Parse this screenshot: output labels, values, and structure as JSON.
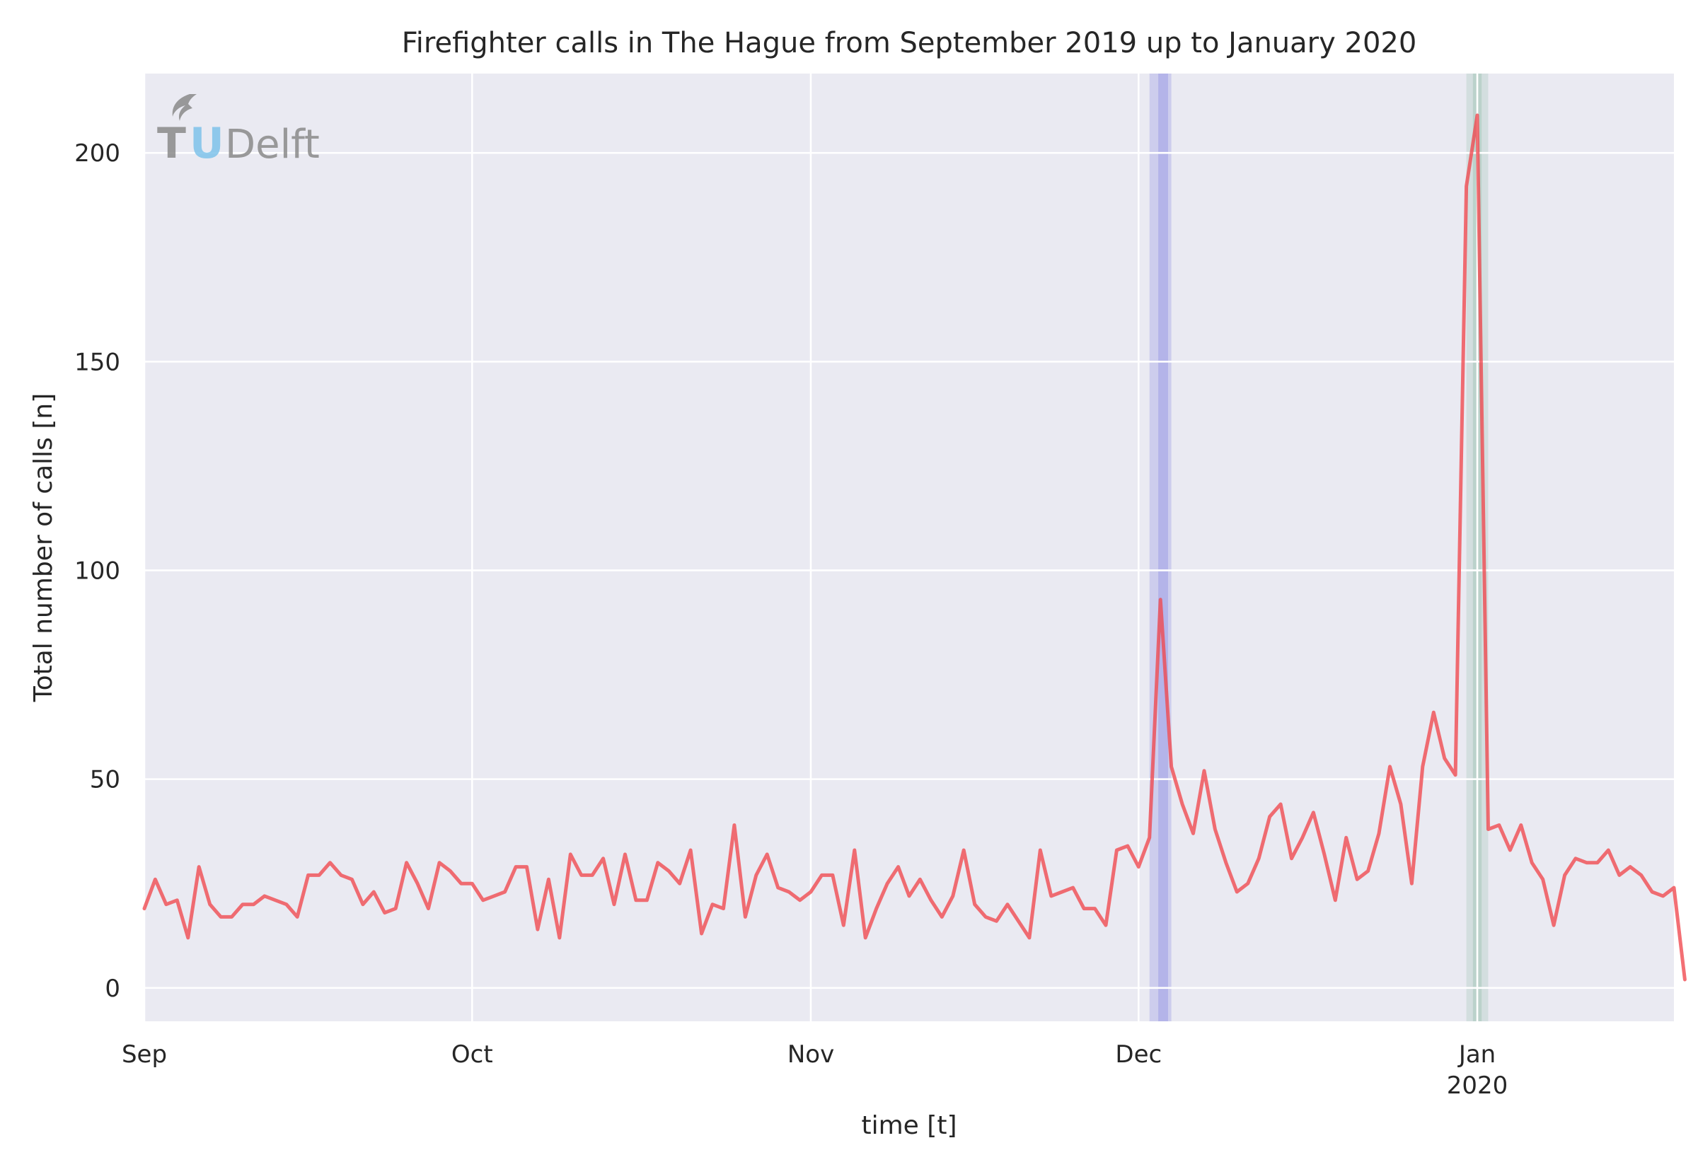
{
  "chart_data": {
    "type": "line",
    "title": "Firefighter calls in The Hague from September 2019 up to January 2020",
    "xlabel": "time [t]",
    "ylabel": "Total number of calls [n]",
    "x_range": [
      "2019-09-01",
      "2020-01-19"
    ],
    "ylim": [
      -8,
      219
    ],
    "grid": true,
    "y_ticks": [
      0,
      50,
      100,
      150,
      200
    ],
    "x_ticks": [
      {
        "date": "2019-09-01",
        "label": "Sep",
        "sublabel": ""
      },
      {
        "date": "2019-10-01",
        "label": "Oct",
        "sublabel": ""
      },
      {
        "date": "2019-11-01",
        "label": "Nov",
        "sublabel": ""
      },
      {
        "date": "2019-12-01",
        "label": "Dec",
        "sublabel": ""
      },
      {
        "date": "2020-01-01",
        "label": "Jan",
        "sublabel": "2020"
      }
    ],
    "highlight_spans": [
      {
        "start": "2019-12-02",
        "end": "2019-12-04",
        "color": "#0000cd",
        "opacity": 0.12
      },
      {
        "start": "2019-12-02.8",
        "end": "2019-12-03.7",
        "color": "#0000cd",
        "opacity": 0.12
      },
      {
        "start": "2019-12-31",
        "end": "2020-01-02",
        "color": "#2e8b57",
        "opacity": 0.12
      },
      {
        "start": "2019-12-31.6",
        "end": "2020-01-01.4",
        "color": "#2e8b57",
        "opacity": 0.14
      }
    ],
    "series": [
      {
        "color": "#f0474d",
        "start_date": "2019-09-01",
        "step_days": 1,
        "values": [
          19,
          26,
          20,
          21,
          12,
          29,
          20,
          17,
          17,
          20,
          20,
          22,
          21,
          20,
          17,
          27,
          27,
          30,
          27,
          26,
          20,
          23,
          18,
          19,
          30,
          25,
          19,
          30,
          28,
          25,
          25,
          21,
          22,
          23,
          29,
          29,
          14,
          26,
          12,
          32,
          27,
          27,
          31,
          20,
          32,
          21,
          21,
          30,
          28,
          25,
          33,
          13,
          20,
          19,
          39,
          17,
          27,
          32,
          24,
          23,
          21,
          23,
          27,
          27,
          15,
          33,
          12,
          19,
          25,
          29,
          22,
          26,
          21,
          17,
          22,
          33,
          20,
          17,
          16,
          20,
          16,
          12,
          33,
          22,
          23,
          24,
          19,
          19,
          15,
          33,
          34,
          29,
          36,
          93,
          53,
          44,
          37,
          52,
          38,
          30,
          23,
          25,
          31,
          41,
          44,
          31,
          36,
          42,
          32,
          21,
          36,
          26,
          28,
          37,
          53,
          44,
          25,
          53,
          66,
          55,
          51,
          192,
          209,
          38,
          39,
          33,
          39,
          30,
          26,
          15,
          27,
          31,
          30,
          30,
          33,
          27,
          29,
          27,
          23,
          22,
          24,
          2
        ]
      }
    ],
    "logo": {
      "text_t": "T",
      "text_u": "U",
      "text_rest": "Delft"
    }
  }
}
